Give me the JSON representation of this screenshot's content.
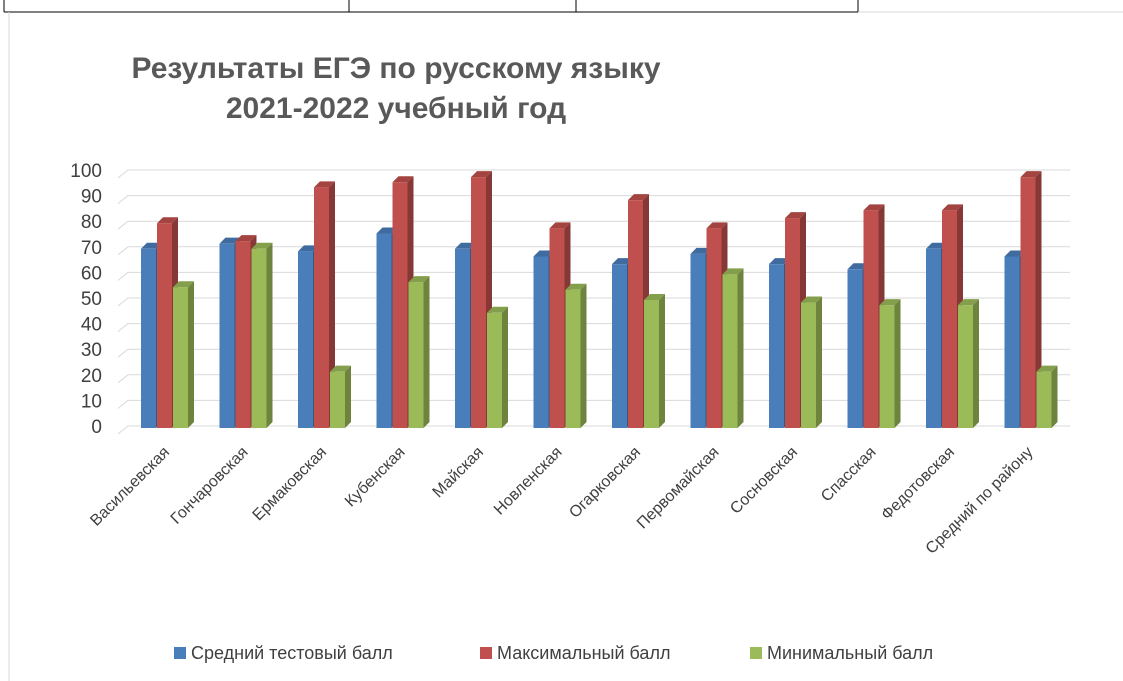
{
  "chart_data": {
    "type": "bar3d",
    "title": [
      "Результаты ЕГЭ по русскому языку",
      "2021-2022 учебный год"
    ],
    "categories": [
      "Васильевская",
      "Гончаровская",
      "Ермаковская",
      "Кубенская",
      "Майская",
      "Новленская",
      "Огарковская",
      "Первомайская",
      "Сосновская",
      "Спасская",
      "Федотовская",
      "Средний по району"
    ],
    "series": [
      {
        "name": "Средний тестовый балл",
        "color": "#4a7ebb",
        "values": [
          70,
          72,
          69,
          76,
          70,
          67,
          64,
          68,
          64,
          62,
          70,
          67
        ]
      },
      {
        "name": "Максимальный балл",
        "color": "#c0504d",
        "values": [
          80,
          73,
          94,
          96,
          98,
          78,
          89,
          78,
          82,
          85,
          85,
          98
        ]
      },
      {
        "name": "Минимальный балл",
        "color": "#9bbb59",
        "values": [
          55,
          70,
          22,
          57,
          45,
          54,
          50,
          60,
          49,
          48,
          48,
          22
        ]
      }
    ],
    "ylim": [
      0,
      100
    ],
    "yticks": [
      0,
      10,
      20,
      30,
      40,
      50,
      60,
      70,
      80,
      90,
      100
    ],
    "grid": true,
    "legend": "bottom"
  }
}
